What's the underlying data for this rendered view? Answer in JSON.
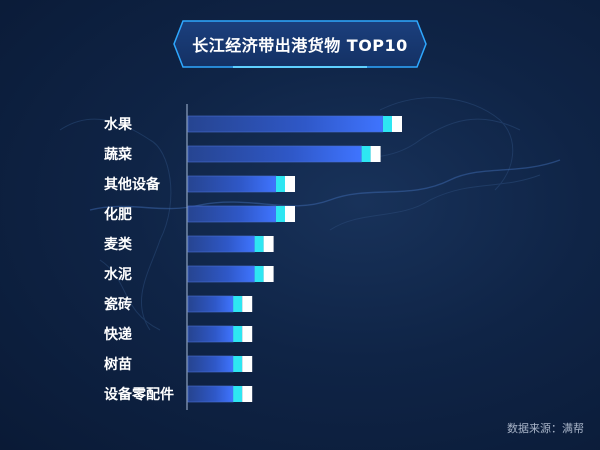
{
  "title": "长江经济带出港货物 TOP10",
  "source": "数据来源：满帮",
  "colors": {
    "background": "#0f2446",
    "bar_dark": "#2b4fb8",
    "bar_light": "#3c6cf0",
    "cap_cyan": "#2ee6f2",
    "cap_white": "#ffffff",
    "axis": "#8fa3c0",
    "label": "#ffffff"
  },
  "chart_data": {
    "type": "bar",
    "orientation": "horizontal",
    "title": "长江经济带出港货物 TOP10",
    "categories": [
      "水果",
      "蔬菜",
      "其他设备",
      "化肥",
      "麦类",
      "水泥",
      "瓷砖",
      "快递",
      "树苗",
      "设备零配件"
    ],
    "values": [
      10.0,
      9.0,
      5.0,
      5.0,
      4.0,
      4.0,
      3.0,
      3.0,
      3.0,
      3.0
    ],
    "xlim": [
      0,
      10.5
    ],
    "grid": false,
    "legend": "none"
  }
}
